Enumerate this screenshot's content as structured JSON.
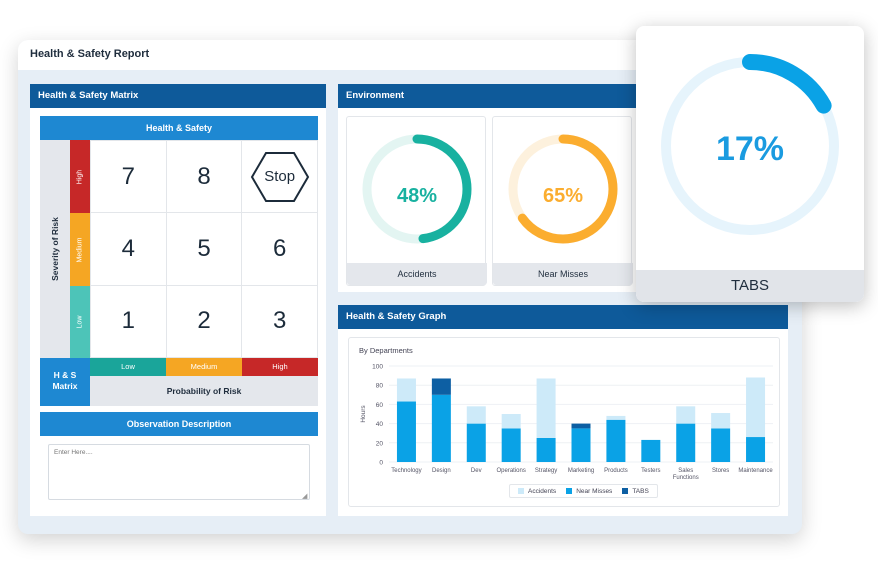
{
  "window": {
    "title": "Health & Safety Report"
  },
  "matrix": {
    "panel_title": "Health & Safety Matrix",
    "header": "Health & Safety",
    "severity_label": "Severity of Risk",
    "severity_levels": [
      "High",
      "Medium",
      "Low"
    ],
    "cells": [
      "7",
      "8",
      "Stop",
      "4",
      "5",
      "6",
      "1",
      "2",
      "3"
    ],
    "hs_label": "H & S Matrix",
    "probability_levels": [
      "Low",
      "Medium",
      "High"
    ],
    "probability_label": "Probability of Risk",
    "observation_title": "Observation Description",
    "observation_placeholder": "Enter Here....",
    "colors": {
      "high": "#c62828",
      "medium": "#f5a623",
      "low": "#1db5a5",
      "lowProb": "#1aa59a"
    }
  },
  "environment": {
    "panel_title": "Environment",
    "gauges": [
      {
        "value": "48%",
        "fraction": 0.48,
        "label": "Accidents",
        "color": "#18b1a0",
        "track": "#e3f5f2"
      },
      {
        "value": "65%",
        "fraction": 0.65,
        "label": "Near Misses",
        "color": "#fbad2f",
        "track": "#fdf1dd"
      }
    ]
  },
  "graph": {
    "panel_title": "Health & Safety Graph",
    "subtitle": "By Departments",
    "legend": [
      "Accidents",
      "Near Misses",
      "TABS"
    ],
    "colors": [
      "#cdeaf9",
      "#0aa2e6",
      "#0d5fa3"
    ]
  },
  "tabs_card": {
    "value": "17%",
    "fraction": 0.17,
    "label": "TABS",
    "color": "#0aa2e6",
    "track": "#e6f4fc"
  },
  "chart_data": {
    "type": "bar",
    "stacked": true,
    "title": "By Departments",
    "ylabel": "Hours",
    "xlabel": "",
    "ylim": [
      0,
      100
    ],
    "yticks": [
      0,
      20,
      40,
      60,
      80,
      100
    ],
    "categories": [
      "Technology",
      "Design",
      "Dev",
      "Operations",
      "Strategy",
      "Marketing",
      "Products",
      "Testers",
      "Sales Functions",
      "Stores",
      "Maintenance"
    ],
    "series": [
      {
        "name": "Near Misses",
        "values": [
          63,
          70,
          40,
          35,
          25,
          35,
          44,
          23,
          40,
          35,
          26
        ]
      },
      {
        "name": "Accidents",
        "values": [
          24,
          0,
          18,
          15,
          62,
          0,
          4,
          0,
          18,
          16,
          62
        ]
      },
      {
        "name": "TABS",
        "values": [
          0,
          17,
          0,
          0,
          0,
          5,
          0,
          0,
          0,
          0,
          0
        ]
      }
    ],
    "legend_position": "bottom",
    "grid": true
  }
}
